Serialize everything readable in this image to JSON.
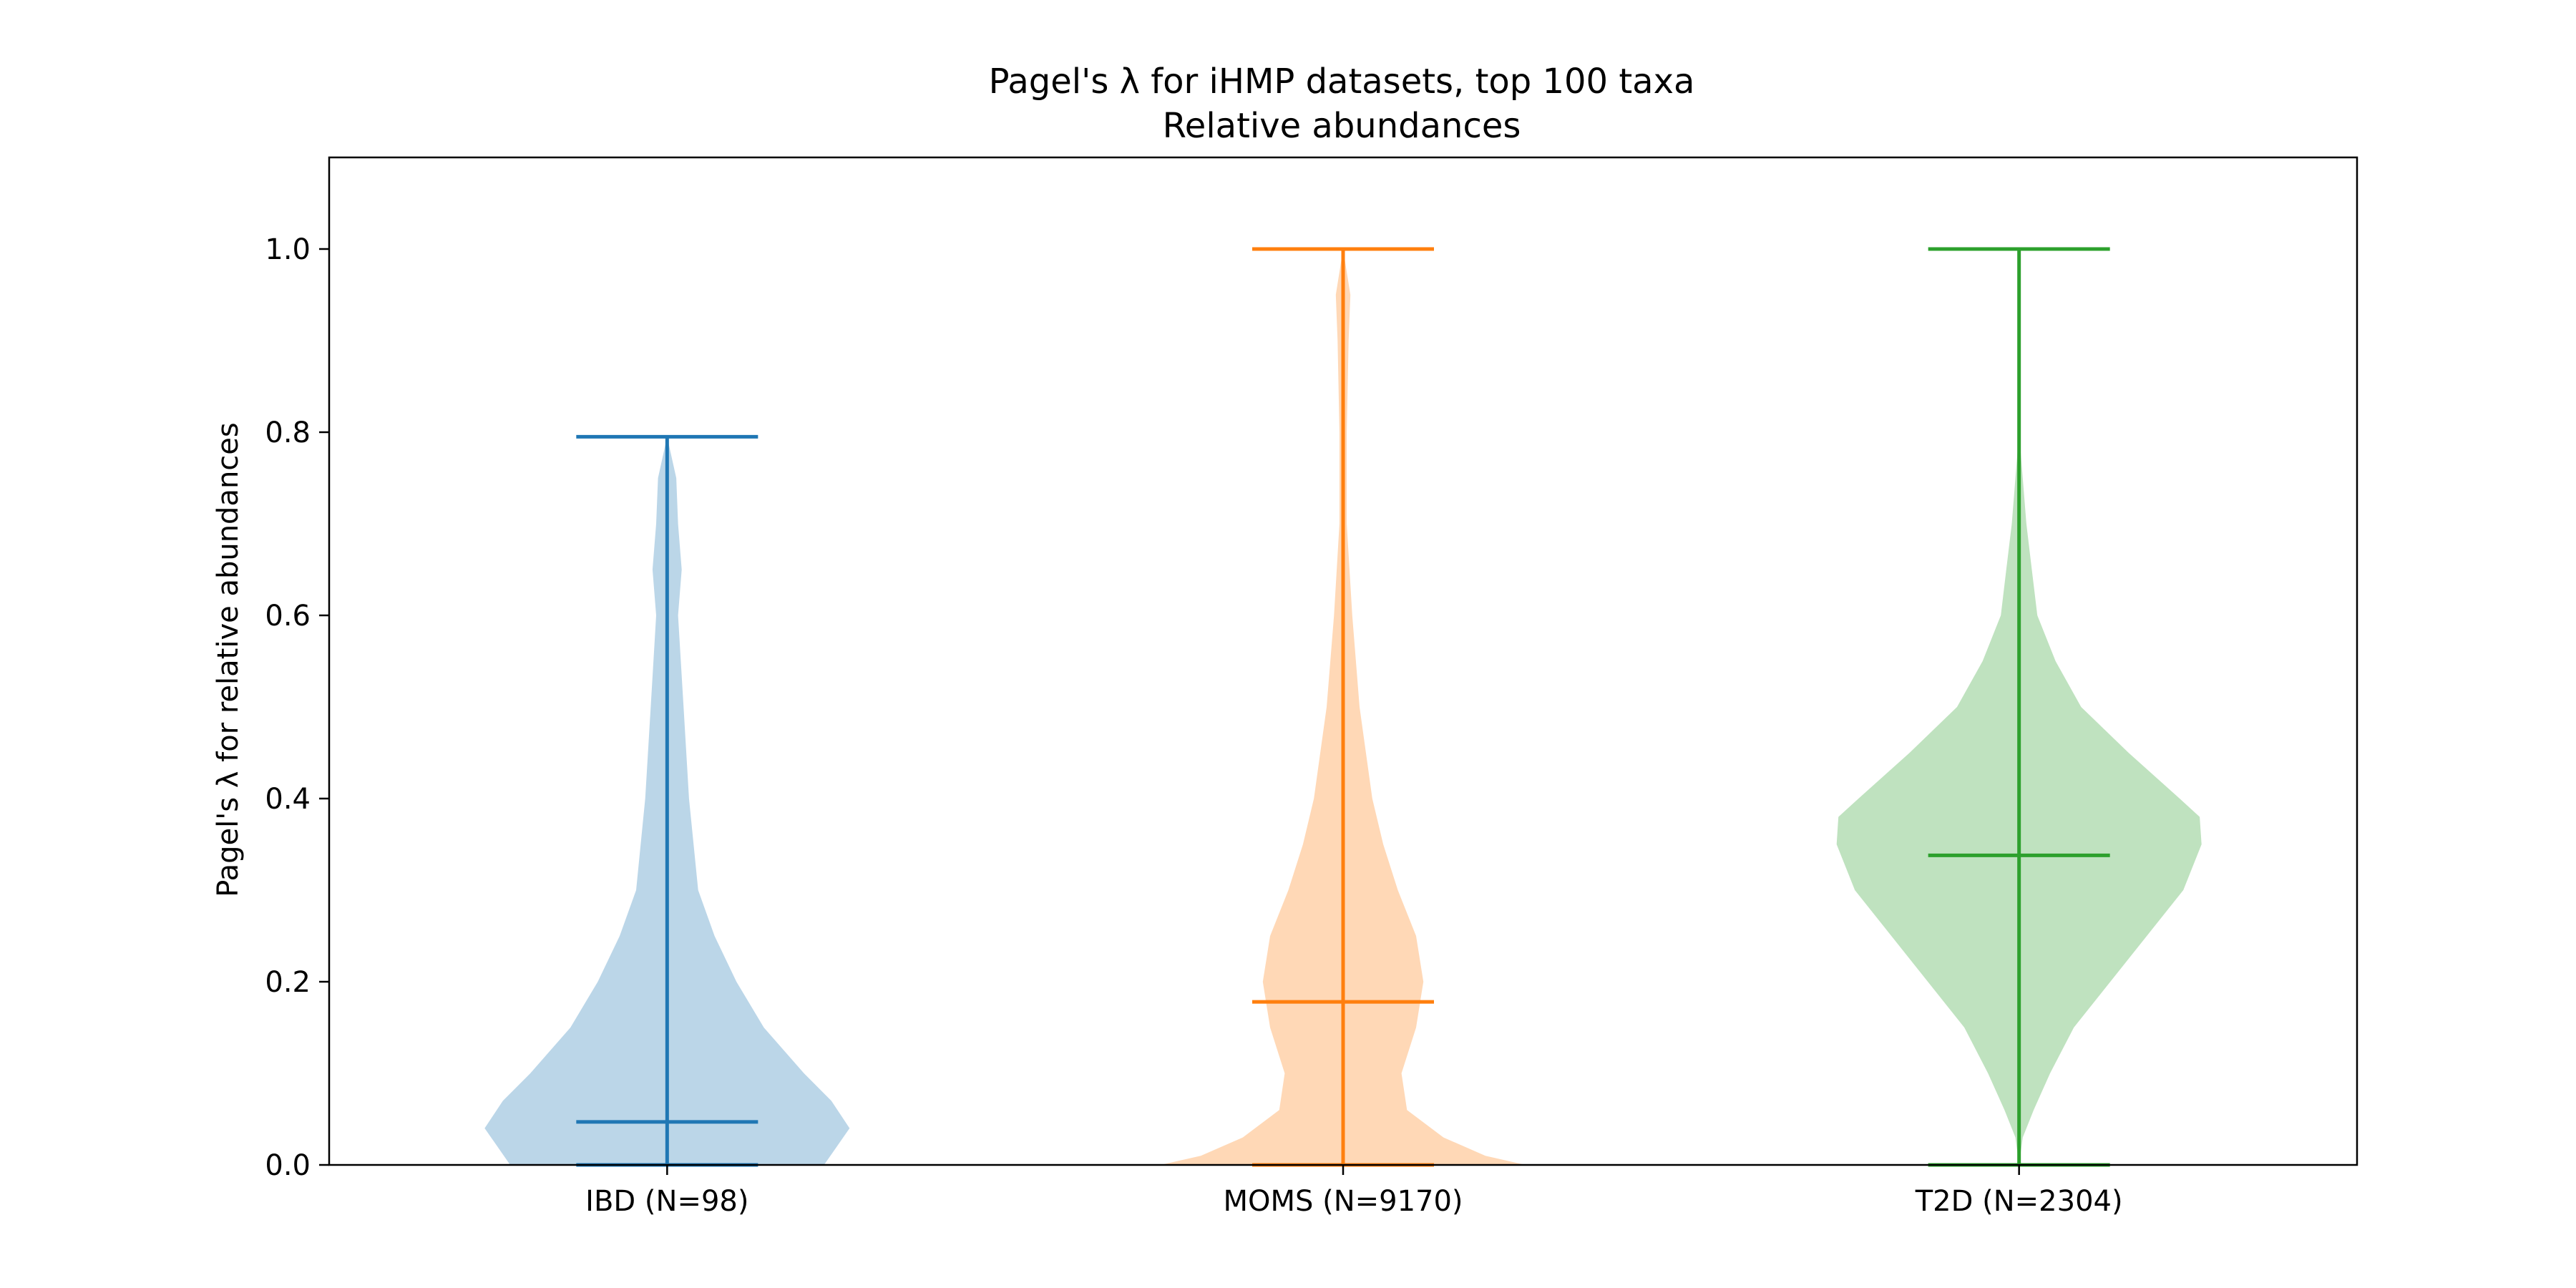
{
  "chart_data": {
    "type": "violin",
    "title": "Pagel's λ for iHMP datasets, top 100 taxa",
    "subtitle": "Relative abundances",
    "xlabel": "",
    "ylabel": "Pagel's λ for relative abundances",
    "ylim": [
      0,
      1.1
    ],
    "yticks": [
      "0.0",
      "0.2",
      "0.4",
      "0.6",
      "0.8",
      "1.0"
    ],
    "grid": false,
    "series": [
      {
        "name": "IBD (N=98)",
        "color": "#1f77b4",
        "fill": "#1f77b4",
        "min": 0.0,
        "max": 0.795,
        "median": 0.047,
        "density": [
          [
            0.0,
            0.86
          ],
          [
            0.02,
            0.93
          ],
          [
            0.04,
            1.0
          ],
          [
            0.07,
            0.9
          ],
          [
            0.1,
            0.75
          ],
          [
            0.15,
            0.53
          ],
          [
            0.2,
            0.38
          ],
          [
            0.25,
            0.26
          ],
          [
            0.3,
            0.17
          ],
          [
            0.4,
            0.12
          ],
          [
            0.5,
            0.09
          ],
          [
            0.6,
            0.06
          ],
          [
            0.65,
            0.08
          ],
          [
            0.7,
            0.06
          ],
          [
            0.75,
            0.05
          ],
          [
            0.795,
            0.0
          ]
        ]
      },
      {
        "name": "MOMS (N=9170)",
        "color": "#ff7f0e",
        "fill": "#ff7f0e",
        "min": 0.0,
        "max": 1.0,
        "median": 0.178,
        "density": [
          [
            0.0,
            1.0
          ],
          [
            0.01,
            0.78
          ],
          [
            0.03,
            0.55
          ],
          [
            0.06,
            0.35
          ],
          [
            0.1,
            0.32
          ],
          [
            0.15,
            0.4
          ],
          [
            0.2,
            0.44
          ],
          [
            0.25,
            0.4
          ],
          [
            0.3,
            0.3
          ],
          [
            0.35,
            0.22
          ],
          [
            0.4,
            0.16
          ],
          [
            0.5,
            0.09
          ],
          [
            0.6,
            0.05
          ],
          [
            0.7,
            0.02
          ],
          [
            0.8,
            0.02
          ],
          [
            0.9,
            0.03
          ],
          [
            0.95,
            0.04
          ],
          [
            1.0,
            0.0
          ]
        ]
      },
      {
        "name": "T2D (N=2304)",
        "color": "#2ca02c",
        "fill": "#2ca02c",
        "min": 0.0,
        "max": 1.0,
        "median": 0.338,
        "density": [
          [
            0.0,
            0.0
          ],
          [
            0.03,
            0.02
          ],
          [
            0.06,
            0.08
          ],
          [
            0.1,
            0.17
          ],
          [
            0.15,
            0.3
          ],
          [
            0.2,
            0.5
          ],
          [
            0.25,
            0.7
          ],
          [
            0.3,
            0.9
          ],
          [
            0.35,
            1.0
          ],
          [
            0.38,
            0.99
          ],
          [
            0.4,
            0.88
          ],
          [
            0.45,
            0.6
          ],
          [
            0.5,
            0.34
          ],
          [
            0.55,
            0.2
          ],
          [
            0.6,
            0.1
          ],
          [
            0.65,
            0.07
          ],
          [
            0.7,
            0.04
          ],
          [
            0.75,
            0.02
          ],
          [
            0.8,
            0.0
          ]
        ]
      }
    ]
  }
}
